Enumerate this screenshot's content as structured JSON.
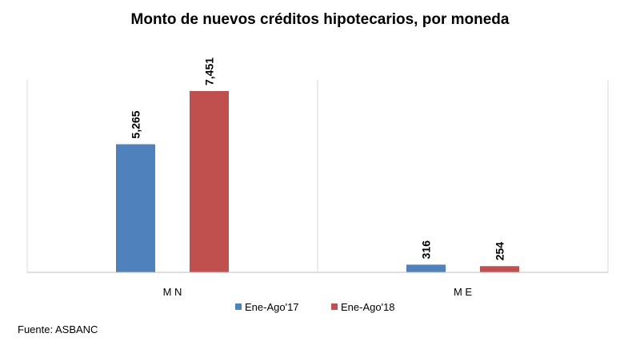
{
  "chart_data": {
    "type": "bar",
    "title": "Monto de nuevos créditos hipotecarios, por moneda",
    "categories": [
      "MN",
      "ME"
    ],
    "category_labels": [
      "M N",
      "M E"
    ],
    "series": [
      {
        "name": "Ene-Ago'17",
        "color": "#4f81bd",
        "values": [
          5265,
          316
        ],
        "labels": [
          "5,265",
          "316"
        ]
      },
      {
        "name": "Ene-Ago'18",
        "color": "#c0504d",
        "values": [
          7451,
          254
        ],
        "labels": [
          "7,451",
          "254"
        ]
      }
    ],
    "ylim": [
      0,
      7451
    ],
    "grid": false,
    "legend_position": "bottom",
    "xlabel": "",
    "ylabel": ""
  },
  "source": "Fuente: ASBANC"
}
